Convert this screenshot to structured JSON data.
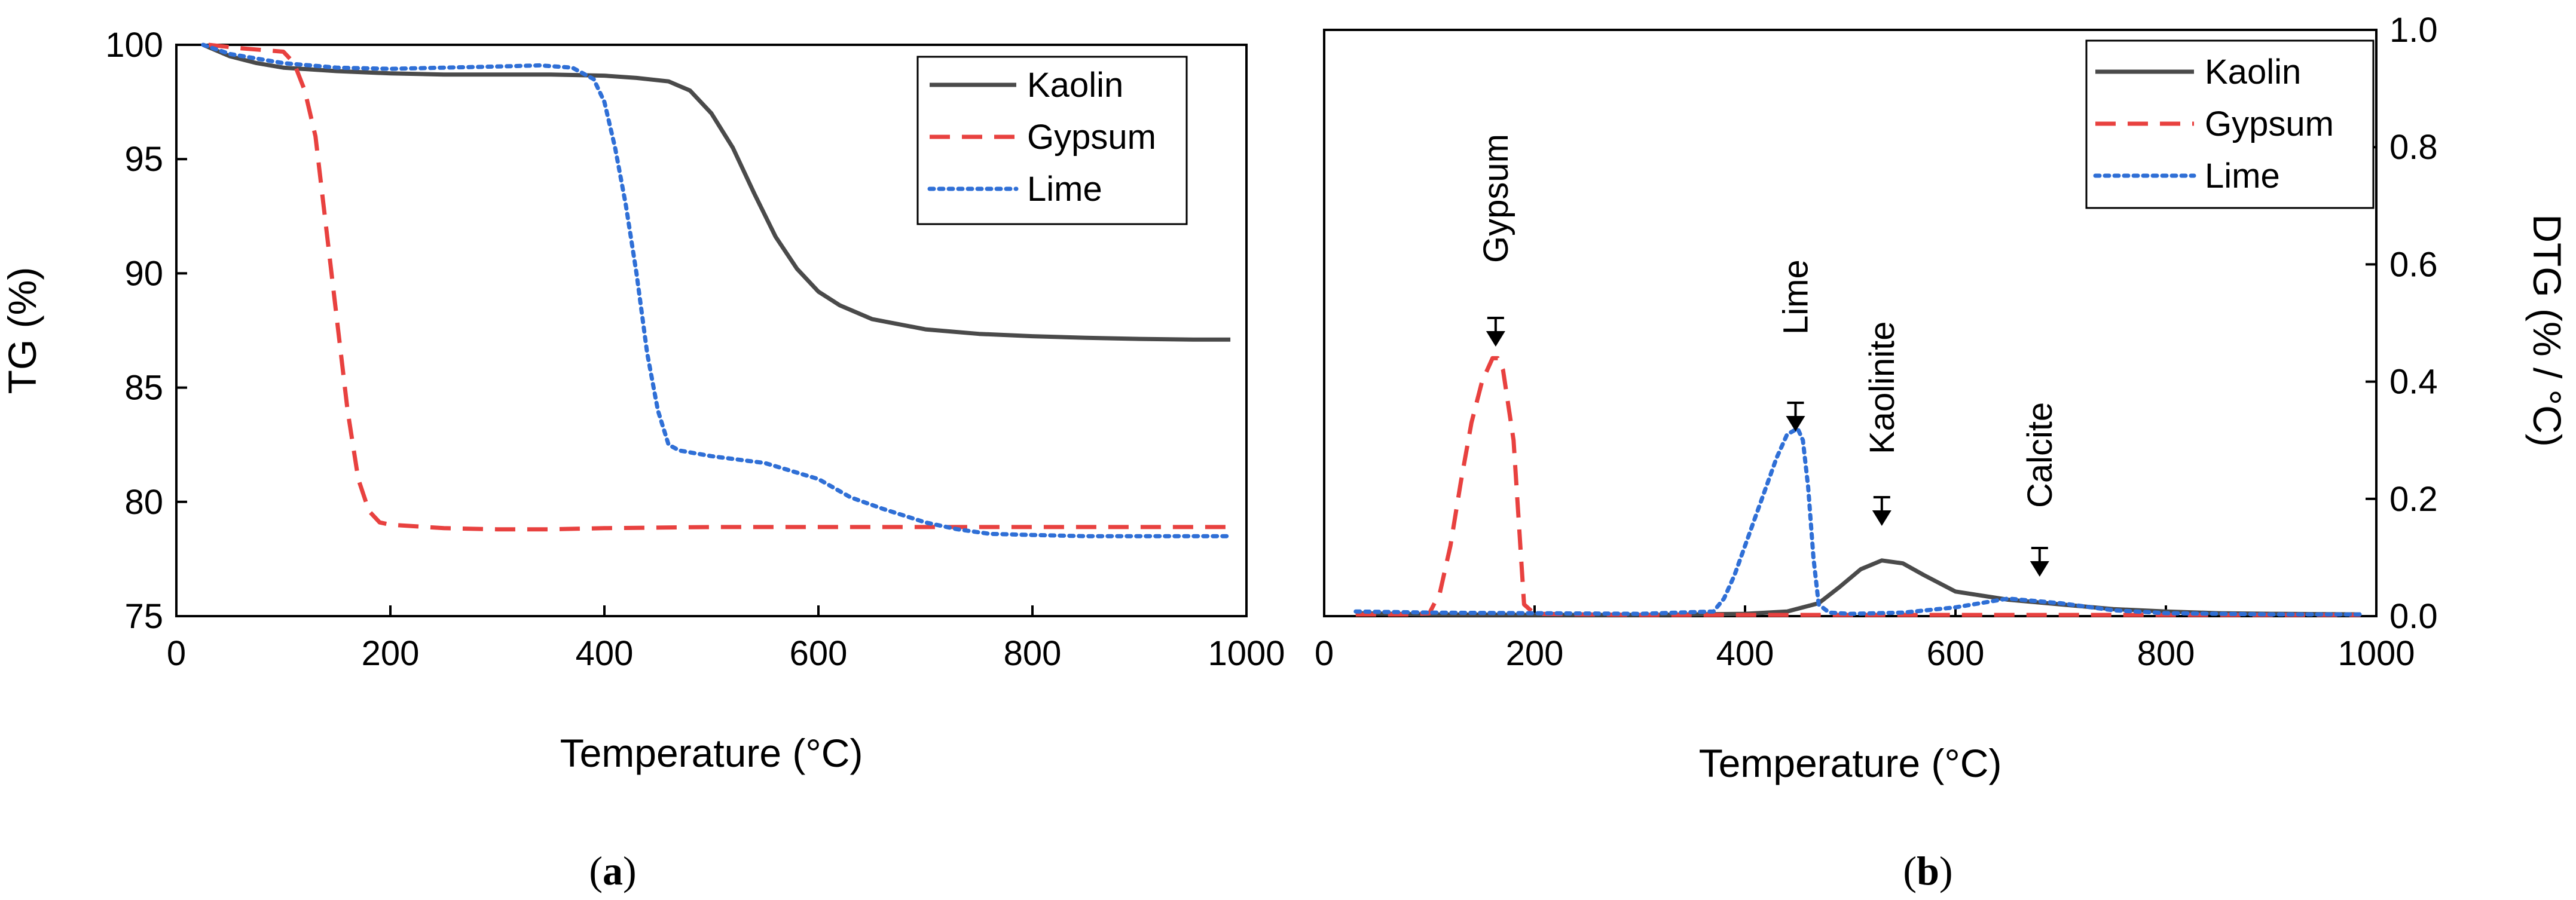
{
  "chart_data": [
    {
      "type": "line",
      "panel_label": "(a)",
      "panel_letter": "a",
      "xlabel": "Temperature (°C)",
      "ylabel": "TG (%)",
      "xlim": [
        0,
        1000
      ],
      "ylim": [
        75,
        100
      ],
      "xticks": [
        0,
        200,
        400,
        600,
        800,
        1000
      ],
      "yticks": [
        75,
        80,
        85,
        90,
        95,
        100
      ],
      "legend_position": "top-right",
      "series": [
        {
          "name": "Kaolin",
          "color": "#4a4a4a",
          "style": "solid",
          "x": [
            25,
            50,
            75,
            100,
            150,
            200,
            250,
            300,
            350,
            400,
            430,
            460,
            480,
            500,
            520,
            540,
            560,
            580,
            600,
            620,
            650,
            700,
            750,
            800,
            850,
            900,
            950,
            985
          ],
          "y": [
            100,
            99.5,
            99.2,
            99.0,
            98.85,
            98.75,
            98.7,
            98.7,
            98.7,
            98.65,
            98.55,
            98.4,
            98.0,
            97.0,
            95.5,
            93.5,
            91.6,
            90.2,
            89.2,
            88.6,
            88.0,
            87.55,
            87.35,
            87.25,
            87.18,
            87.13,
            87.1,
            87.1
          ]
        },
        {
          "name": "Gypsum",
          "color": "#e8413f",
          "style": "dashed",
          "x": [
            30,
            60,
            100,
            110,
            120,
            130,
            140,
            150,
            160,
            170,
            180,
            190,
            200,
            250,
            300,
            350,
            400,
            500,
            600,
            700,
            800,
            900,
            985
          ],
          "y": [
            100,
            99.85,
            99.7,
            99.2,
            98.0,
            96.0,
            92.0,
            88.0,
            84.0,
            81.0,
            79.6,
            79.1,
            79.0,
            78.85,
            78.8,
            78.8,
            78.85,
            78.9,
            78.9,
            78.9,
            78.9,
            78.9,
            78.9
          ]
        },
        {
          "name": "Lime",
          "color": "#2f6fd6",
          "style": "dotted",
          "x": [
            25,
            50,
            100,
            150,
            200,
            250,
            300,
            340,
            370,
            390,
            400,
            410,
            420,
            430,
            440,
            450,
            460,
            470,
            500,
            550,
            600,
            630,
            660,
            700,
            730,
            760,
            800,
            850,
            900,
            985
          ],
          "y": [
            100,
            99.6,
            99.2,
            99.0,
            98.95,
            99.0,
            99.05,
            99.1,
            99.0,
            98.5,
            97.5,
            95.5,
            93.0,
            90.0,
            86.5,
            84.0,
            82.5,
            82.25,
            82.0,
            81.7,
            81.0,
            80.2,
            79.7,
            79.1,
            78.8,
            78.6,
            78.55,
            78.5,
            78.5,
            78.5
          ]
        }
      ]
    },
    {
      "type": "line",
      "panel_label": "(b)",
      "panel_letter": "b",
      "xlabel": "Temperature (°C)",
      "ylabel": "DTG (% / °C)",
      "ylabel_side": "right",
      "xlim": [
        0,
        1000
      ],
      "ylim": [
        0,
        1
      ],
      "xticks": [
        0,
        200,
        400,
        600,
        800,
        1000
      ],
      "yticks": [
        0.0,
        0.2,
        0.4,
        0.6,
        0.8,
        1.0
      ],
      "ytick_labels": [
        "0.0",
        "0.2",
        "0.4",
        "0.6",
        "0.8",
        "1.0"
      ],
      "legend_position": "top-right",
      "series": [
        {
          "name": "Kaolin",
          "color": "#4a4a4a",
          "style": "solid",
          "x": [
            30,
            100,
            200,
            300,
            400,
            440,
            470,
            490,
            510,
            530,
            550,
            570,
            600,
            650,
            700,
            750,
            800,
            850,
            900,
            985
          ],
          "y": [
            0.005,
            0.003,
            0.002,
            0.002,
            0.004,
            0.008,
            0.022,
            0.05,
            0.08,
            0.095,
            0.09,
            0.07,
            0.042,
            0.028,
            0.02,
            0.012,
            0.008,
            0.005,
            0.004,
            0.003
          ]
        },
        {
          "name": "Gypsum",
          "color": "#e8413f",
          "style": "dashed",
          "x": [
            30,
            80,
            100,
            110,
            120,
            130,
            140,
            150,
            160,
            165,
            170,
            180,
            190,
            200,
            300,
            400,
            500,
            600,
            700,
            800,
            900,
            985
          ],
          "y": [
            0.003,
            0.003,
            0.005,
            0.04,
            0.12,
            0.23,
            0.33,
            0.4,
            0.44,
            0.44,
            0.42,
            0.3,
            0.02,
            0.004,
            0.002,
            0.002,
            0.002,
            0.002,
            0.002,
            0.002,
            0.002,
            0.002
          ]
        },
        {
          "name": "Lime",
          "color": "#2f6fd6",
          "style": "dotted",
          "x": [
            30,
            100,
            200,
            300,
            370,
            380,
            390,
            400,
            410,
            420,
            430,
            440,
            450,
            455,
            460,
            465,
            470,
            480,
            500,
            550,
            600,
            650,
            700,
            750,
            800,
            900,
            985
          ],
          "y": [
            0.008,
            0.006,
            0.005,
            0.004,
            0.008,
            0.03,
            0.07,
            0.12,
            0.17,
            0.22,
            0.27,
            0.31,
            0.32,
            0.3,
            0.22,
            0.1,
            0.02,
            0.006,
            0.004,
            0.006,
            0.015,
            0.03,
            0.022,
            0.01,
            0.005,
            0.003,
            0.003
          ]
        }
      ],
      "annotations": [
        {
          "text": "Gypsum",
          "x": 163
        },
        {
          "text": "Lime",
          "x": 448
        },
        {
          "text": "Kaolinite",
          "x": 530
        },
        {
          "text": "Calcite",
          "x": 680
        }
      ]
    }
  ]
}
